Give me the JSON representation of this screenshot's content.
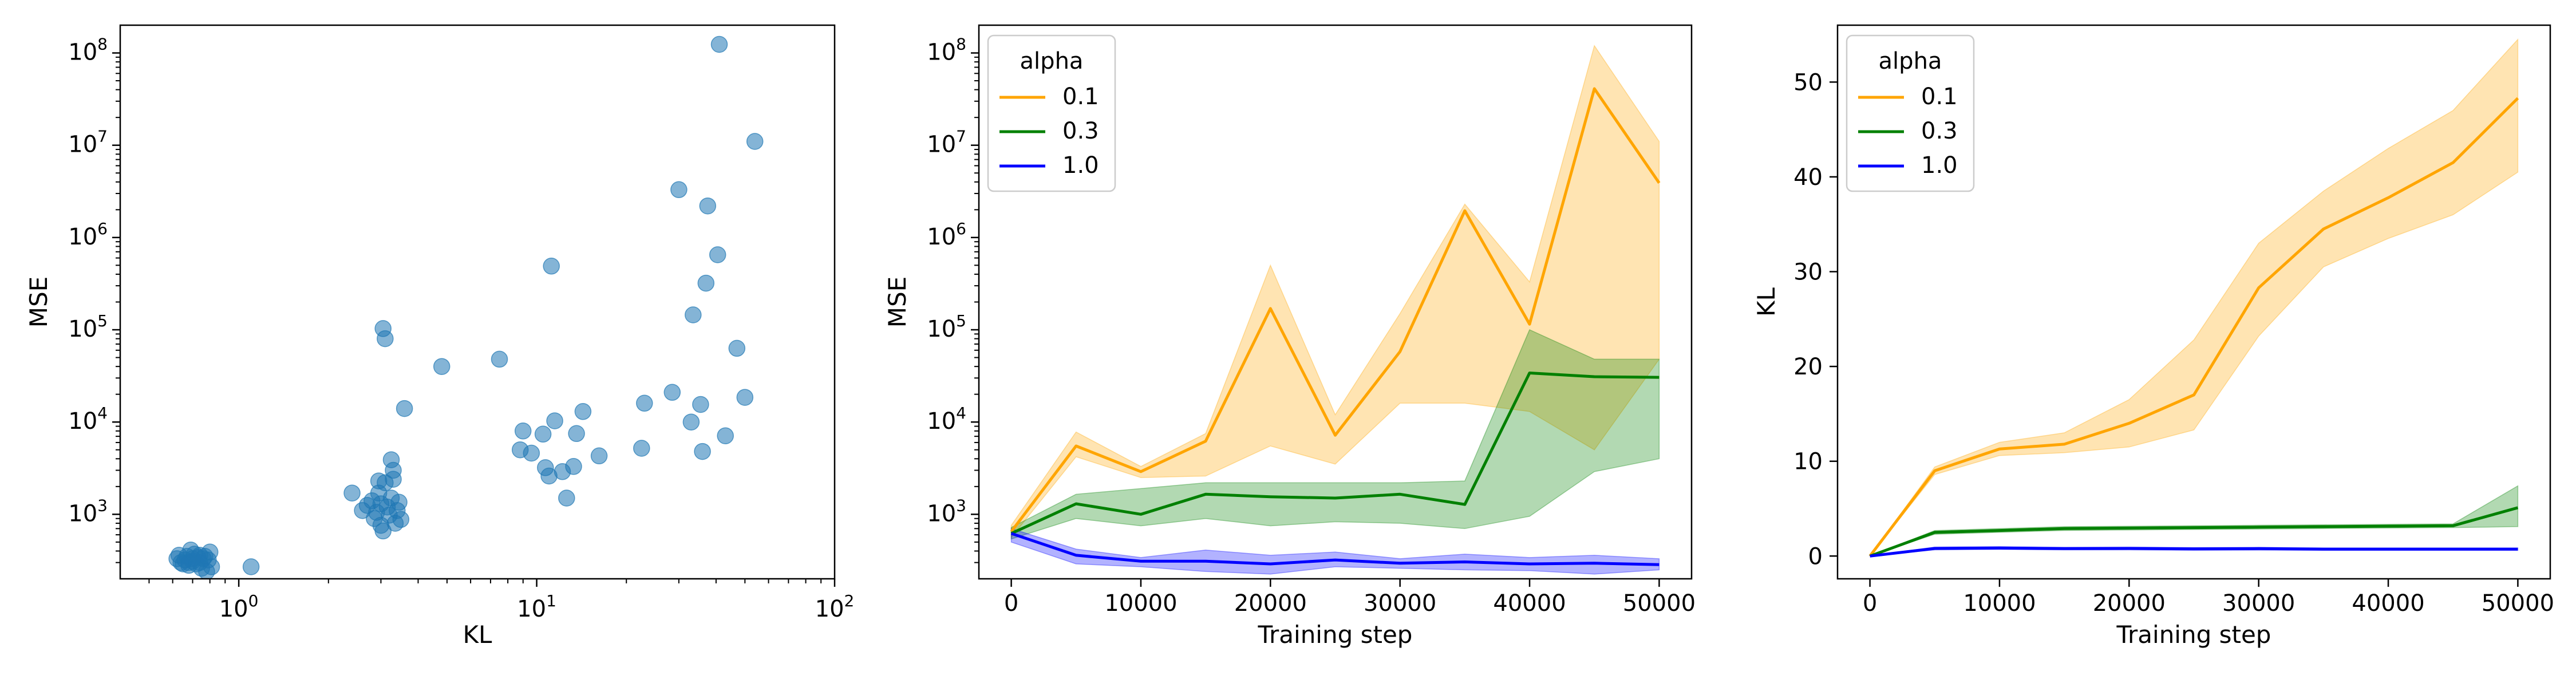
{
  "chart_data": [
    {
      "type": "scatter",
      "title": "",
      "xlabel": "KL",
      "ylabel": "MSE",
      "xscale": "log",
      "yscale": "log",
      "xlim": [
        0.4,
        100
      ],
      "ylim": [
        200,
        200000000
      ],
      "x_ticks": [
        {
          "value": 1,
          "base": "10",
          "exp": "0"
        },
        {
          "value": 10,
          "base": "10",
          "exp": "1"
        },
        {
          "value": 100,
          "base": "10",
          "exp": "2"
        }
      ],
      "y_ticks": [
        {
          "value": 1000,
          "base": "10",
          "exp": "3"
        },
        {
          "value": 10000,
          "base": "10",
          "exp": "4"
        },
        {
          "value": 100000,
          "base": "10",
          "exp": "5"
        },
        {
          "value": 1000000,
          "base": "10",
          "exp": "6"
        },
        {
          "value": 10000000,
          "base": "10",
          "exp": "7"
        },
        {
          "value": 100000000,
          "base": "10",
          "exp": "8"
        }
      ],
      "color": "#1f77b4",
      "points": [
        [
          0.62,
          330
        ],
        [
          0.63,
          360
        ],
        [
          0.64,
          300
        ],
        [
          0.66,
          320
        ],
        [
          0.67,
          350
        ],
        [
          0.68,
          280
        ],
        [
          0.69,
          410
        ],
        [
          0.7,
          310
        ],
        [
          0.71,
          370
        ],
        [
          0.72,
          290
        ],
        [
          0.73,
          340
        ],
        [
          0.74,
          300
        ],
        [
          0.75,
          260
        ],
        [
          0.76,
          330
        ],
        [
          0.77,
          350
        ],
        [
          0.78,
          240
        ],
        [
          0.79,
          320
        ],
        [
          0.8,
          390
        ],
        [
          0.81,
          270
        ],
        [
          0.7,
          330
        ],
        [
          0.68,
          300
        ],
        [
          0.74,
          360
        ],
        [
          0.65,
          290
        ],
        [
          1.1,
          270
        ],
        [
          2.4,
          1700
        ],
        [
          2.6,
          1100
        ],
        [
          2.7,
          1250
        ],
        [
          2.8,
          1400
        ],
        [
          2.85,
          900
        ],
        [
          2.9,
          1050
        ],
        [
          2.95,
          1700
        ],
        [
          3.0,
          1300
        ],
        [
          3.0,
          760
        ],
        [
          3.05,
          660
        ],
        [
          3.1,
          2200
        ],
        [
          3.15,
          1200
        ],
        [
          3.2,
          980
        ],
        [
          3.25,
          1500
        ],
        [
          3.3,
          2400
        ],
        [
          3.35,
          800
        ],
        [
          3.4,
          1100
        ],
        [
          3.45,
          1350
        ],
        [
          3.5,
          880
        ],
        [
          2.95,
          2300
        ],
        [
          3.25,
          3900
        ],
        [
          3.3,
          3000
        ],
        [
          3.05,
          103000
        ],
        [
          3.1,
          80000
        ],
        [
          3.6,
          14000
        ],
        [
          4.8,
          40000
        ],
        [
          7.5,
          48000
        ],
        [
          8.8,
          5000
        ],
        [
          9.0,
          8000
        ],
        [
          9.6,
          4600
        ],
        [
          10.5,
          7400
        ],
        [
          10.7,
          3200
        ],
        [
          11.0,
          2600
        ],
        [
          11.5,
          10300
        ],
        [
          11.2,
          490000
        ],
        [
          12.2,
          2900
        ],
        [
          12.6,
          1500
        ],
        [
          13.3,
          3300
        ],
        [
          13.6,
          7500
        ],
        [
          14.3,
          13000
        ],
        [
          16.2,
          4300
        ],
        [
          22.5,
          5200
        ],
        [
          23.0,
          16000
        ],
        [
          28.5,
          21000
        ],
        [
          30.0,
          3300000
        ],
        [
          33.0,
          10000
        ],
        [
          33.5,
          145000
        ],
        [
          35.5,
          15500
        ],
        [
          36.0,
          4800
        ],
        [
          37.0,
          320000
        ],
        [
          37.5,
          2200000
        ],
        [
          40.5,
          650000
        ],
        [
          41.0,
          124000000
        ],
        [
          43.0,
          7100
        ],
        [
          47.0,
          63000
        ],
        [
          50.0,
          18500
        ],
        [
          54.0,
          11000000
        ]
      ]
    },
    {
      "type": "line",
      "title": "",
      "xlabel": "Training step",
      "ylabel": "MSE",
      "yscale": "log",
      "xlim": [
        -2500,
        52500
      ],
      "ylim": [
        200,
        200000000
      ],
      "x_ticks": [
        {
          "value": 0,
          "label": "0"
        },
        {
          "value": 10000,
          "label": "10000"
        },
        {
          "value": 20000,
          "label": "20000"
        },
        {
          "value": 30000,
          "label": "30000"
        },
        {
          "value": 40000,
          "label": "40000"
        },
        {
          "value": 50000,
          "label": "50000"
        }
      ],
      "y_ticks": [
        {
          "value": 1000,
          "base": "10",
          "exp": "3"
        },
        {
          "value": 10000,
          "base": "10",
          "exp": "4"
        },
        {
          "value": 100000,
          "base": "10",
          "exp": "5"
        },
        {
          "value": 1000000,
          "base": "10",
          "exp": "6"
        },
        {
          "value": 10000000,
          "base": "10",
          "exp": "7"
        },
        {
          "value": 100000000,
          "base": "10",
          "exp": "8"
        }
      ],
      "legend": {
        "title": "alpha",
        "position": "upper-left"
      },
      "x": [
        0,
        5000,
        10000,
        15000,
        20000,
        25000,
        30000,
        35000,
        40000,
        45000,
        50000
      ],
      "series": [
        {
          "name": "0.1",
          "color": "#ffa500",
          "values": [
            650,
            5500,
            2900,
            6200,
            170000,
            7200,
            58000,
            1950000,
            115000,
            41000000,
            3900000
          ],
          "lower": [
            560,
            4200,
            2500,
            2600,
            5500,
            3500,
            16000,
            16000,
            13000,
            5000,
            48000
          ],
          "upper": [
            760,
            7800,
            3300,
            7500,
            500000,
            12000,
            150000,
            2300000,
            330000,
            120000000,
            11000000
          ]
        },
        {
          "name": "0.3",
          "color": "#008000",
          "values": [
            620,
            1300,
            1000,
            1650,
            1550,
            1500,
            1650,
            1280,
            34000,
            31000,
            30500
          ],
          "lower": [
            540,
            900,
            750,
            900,
            750,
            830,
            800,
            700,
            950,
            2900,
            4000
          ],
          "upper": [
            720,
            1650,
            1900,
            2200,
            2200,
            2200,
            2200,
            2300,
            100000,
            48000,
            48000
          ]
        },
        {
          "name": "1.0",
          "color": "#0000ff",
          "values": [
            620,
            360,
            310,
            310,
            290,
            320,
            295,
            305,
            290,
            295,
            285
          ],
          "lower": [
            500,
            290,
            270,
            240,
            225,
            270,
            260,
            250,
            245,
            225,
            250
          ],
          "upper": [
            700,
            420,
            340,
            410,
            360,
            390,
            330,
            370,
            340,
            360,
            330
          ]
        }
      ]
    },
    {
      "type": "line",
      "title": "",
      "xlabel": "Training step",
      "ylabel": "KL",
      "yscale": "linear",
      "xlim": [
        -2500,
        52500
      ],
      "ylim": [
        -2.4,
        56
      ],
      "x_ticks": [
        {
          "value": 0,
          "label": "0"
        },
        {
          "value": 10000,
          "label": "10000"
        },
        {
          "value": 20000,
          "label": "20000"
        },
        {
          "value": 30000,
          "label": "30000"
        },
        {
          "value": 40000,
          "label": "40000"
        },
        {
          "value": 50000,
          "label": "50000"
        }
      ],
      "y_ticks": [
        {
          "value": 0,
          "label": "0"
        },
        {
          "value": 10,
          "label": "10"
        },
        {
          "value": 20,
          "label": "20"
        },
        {
          "value": 30,
          "label": "30"
        },
        {
          "value": 40,
          "label": "40"
        },
        {
          "value": 50,
          "label": "50"
        }
      ],
      "legend": {
        "title": "alpha",
        "position": "upper-left"
      },
      "x": [
        0,
        5000,
        10000,
        15000,
        20000,
        25000,
        30000,
        35000,
        40000,
        45000,
        50000
      ],
      "series": [
        {
          "name": "0.1",
          "color": "#ffa500",
          "values": [
            0,
            9.0,
            11.3,
            11.8,
            14.0,
            17.0,
            28.3,
            34.5,
            37.8,
            41.5,
            48.3
          ],
          "lower": [
            0,
            8.6,
            10.6,
            10.9,
            11.5,
            13.3,
            23.2,
            30.5,
            33.5,
            36.0,
            40.5
          ],
          "upper": [
            0,
            9.4,
            12.0,
            13.0,
            16.5,
            22.8,
            33.0,
            38.5,
            43.0,
            47.0,
            54.5
          ]
        },
        {
          "name": "0.3",
          "color": "#008000",
          "values": [
            0,
            2.5,
            2.7,
            2.9,
            2.95,
            3.0,
            3.05,
            3.1,
            3.15,
            3.2,
            5.1
          ],
          "lower": [
            0,
            2.3,
            2.5,
            2.7,
            2.75,
            2.8,
            2.85,
            2.9,
            2.95,
            3.0,
            3.1
          ],
          "upper": [
            0,
            2.7,
            2.9,
            3.1,
            3.15,
            3.2,
            3.25,
            3.3,
            3.35,
            3.4,
            7.4
          ]
        },
        {
          "name": "1.0",
          "color": "#0000ff",
          "values": [
            0,
            0.8,
            0.85,
            0.78,
            0.8,
            0.75,
            0.78,
            0.72,
            0.72,
            0.72,
            0.72
          ],
          "lower": [
            0,
            0.65,
            0.7,
            0.65,
            0.65,
            0.6,
            0.62,
            0.6,
            0.6,
            0.6,
            0.6
          ],
          "upper": [
            0,
            0.95,
            1.0,
            0.92,
            0.95,
            0.9,
            0.92,
            0.86,
            0.86,
            0.86,
            0.86
          ]
        }
      ]
    }
  ]
}
